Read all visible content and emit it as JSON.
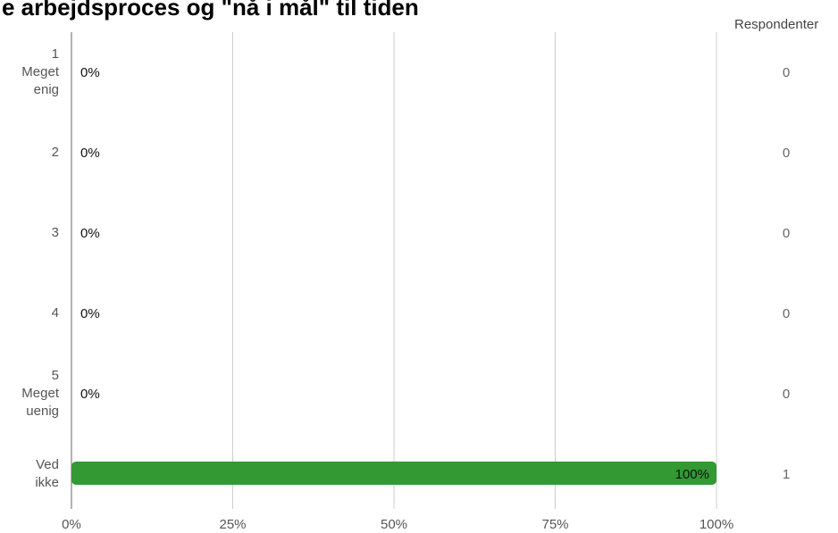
{
  "chart_data": {
    "type": "bar",
    "orientation": "horizontal",
    "title": "e arbejdsproces og \"nå i mål\" til tiden",
    "count_column_header": "Respondenter",
    "categories": [
      [
        "1",
        "Meget",
        "enig"
      ],
      [
        "2"
      ],
      [
        "3"
      ],
      [
        "4"
      ],
      [
        "5",
        "Meget",
        "uenig"
      ],
      [
        "Ved",
        "ikke"
      ]
    ],
    "values": [
      0,
      0,
      0,
      0,
      0,
      100
    ],
    "value_labels": [
      "0%",
      "0%",
      "0%",
      "0%",
      "0%",
      "100%"
    ],
    "counts": [
      "0",
      "0",
      "0",
      "0",
      "0",
      "1"
    ],
    "xlim": [
      0,
      100
    ],
    "x_ticks": [
      0,
      25,
      50,
      75,
      100
    ],
    "x_tick_labels": [
      "0%",
      "25%",
      "50%",
      "75%",
      "100%"
    ],
    "grid": true,
    "bar_color": "#339933"
  }
}
